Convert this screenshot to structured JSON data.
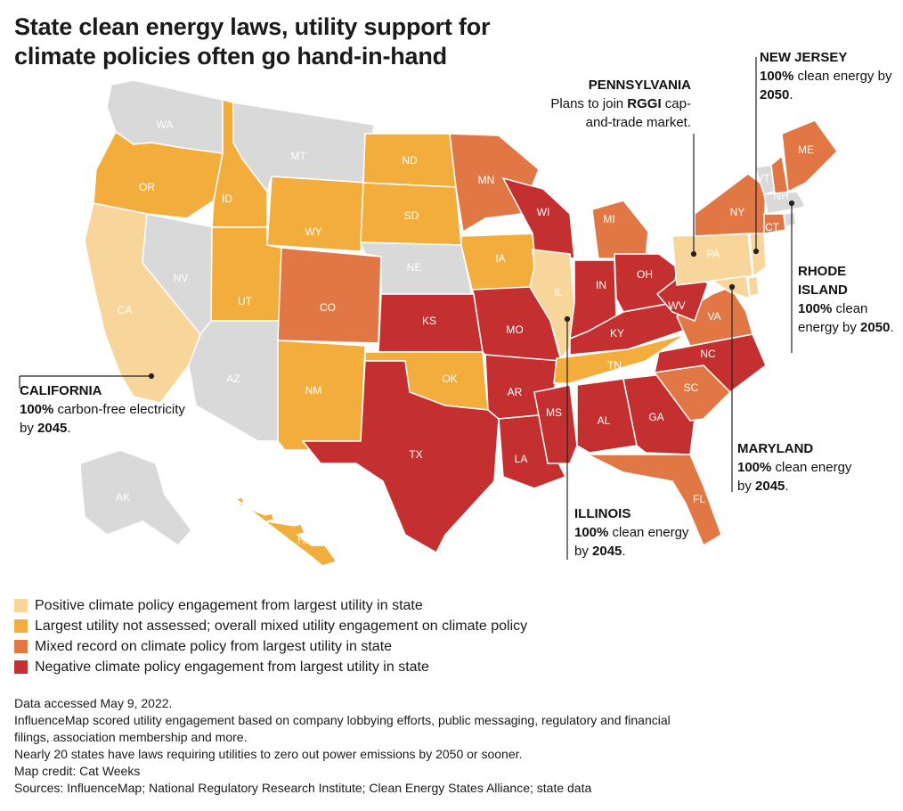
{
  "title": "State clean energy laws, utility support for climate policies often go hand-in-hand",
  "colors": {
    "positive": "#f7d59b",
    "not_assessed": "#f2ad3c",
    "mixed": "#e07744",
    "negative": "#c42f2f",
    "none": "#d9d9d9"
  },
  "states": [
    {
      "code": "WA",
      "category": "none"
    },
    {
      "code": "OR",
      "category": "not_assessed"
    },
    {
      "code": "CA",
      "category": "positive"
    },
    {
      "code": "ID",
      "category": "not_assessed"
    },
    {
      "code": "NV",
      "category": "none"
    },
    {
      "code": "MT",
      "category": "none"
    },
    {
      "code": "WY",
      "category": "not_assessed"
    },
    {
      "code": "UT",
      "category": "not_assessed"
    },
    {
      "code": "AZ",
      "category": "none"
    },
    {
      "code": "CO",
      "category": "mixed"
    },
    {
      "code": "NM",
      "category": "not_assessed"
    },
    {
      "code": "ND",
      "category": "not_assessed"
    },
    {
      "code": "SD",
      "category": "not_assessed"
    },
    {
      "code": "NE",
      "category": "none"
    },
    {
      "code": "KS",
      "category": "negative"
    },
    {
      "code": "OK",
      "category": "not_assessed"
    },
    {
      "code": "TX",
      "category": "negative"
    },
    {
      "code": "MN",
      "category": "mixed"
    },
    {
      "code": "IA",
      "category": "not_assessed"
    },
    {
      "code": "MO",
      "category": "negative"
    },
    {
      "code": "AR",
      "category": "negative"
    },
    {
      "code": "LA",
      "category": "negative"
    },
    {
      "code": "WI",
      "category": "negative"
    },
    {
      "code": "IL",
      "category": "positive"
    },
    {
      "code": "MI",
      "category": "mixed"
    },
    {
      "code": "IN",
      "category": "negative"
    },
    {
      "code": "OH",
      "category": "negative"
    },
    {
      "code": "KY",
      "category": "negative"
    },
    {
      "code": "TN",
      "category": "not_assessed"
    },
    {
      "code": "MS",
      "category": "negative"
    },
    {
      "code": "AL",
      "category": "negative"
    },
    {
      "code": "GA",
      "category": "negative"
    },
    {
      "code": "FL",
      "category": "mixed"
    },
    {
      "code": "SC",
      "category": "mixed"
    },
    {
      "code": "NC",
      "category": "negative"
    },
    {
      "code": "VA",
      "category": "mixed"
    },
    {
      "code": "WV",
      "category": "negative"
    },
    {
      "code": "PA",
      "category": "positive"
    },
    {
      "code": "NY",
      "category": "mixed"
    },
    {
      "code": "VT",
      "category": "none"
    },
    {
      "code": "NH",
      "category": "mixed"
    },
    {
      "code": "ME",
      "category": "mixed"
    },
    {
      "code": "MA",
      "category": "none"
    },
    {
      "code": "RI",
      "category": "none"
    },
    {
      "code": "CT",
      "category": "mixed"
    },
    {
      "code": "NJ",
      "category": "positive"
    },
    {
      "code": "DE",
      "category": "positive"
    },
    {
      "code": "MD",
      "category": "positive"
    },
    {
      "code": "AK",
      "category": "none"
    },
    {
      "code": "HI",
      "category": "not_assessed"
    }
  ],
  "annotations": {
    "california": {
      "name": "CALIFORNIA",
      "pre": "",
      "bold1": "100%",
      "mid": " carbon-free electricity by ",
      "bold2": "2045",
      "post": "."
    },
    "pennsylvania": {
      "name": "PENNSYLVANIA",
      "pre": "Plans to join ",
      "bold1": "RGGI",
      "mid": " cap-and-trade market.",
      "bold2": "",
      "post": ""
    },
    "new_jersey": {
      "name": "NEW JERSEY",
      "pre": "",
      "bold1": "100%",
      "mid": " clean energy by ",
      "bold2": "2050",
      "post": "."
    },
    "rhode_island": {
      "name": "RHODE ISLAND",
      "pre": "",
      "bold1": "100%",
      "mid": " clean energy by ",
      "bold2": "2050",
      "post": "."
    },
    "maryland": {
      "name": "MARYLAND",
      "pre": "",
      "bold1": "100%",
      "mid": " clean energy by ",
      "bold2": "2045",
      "post": "."
    },
    "illinois": {
      "name": "ILLINOIS",
      "pre": "",
      "bold1": "100%",
      "mid": " clean energy by ",
      "bold2": "2045",
      "post": "."
    }
  },
  "legend": [
    {
      "category": "positive",
      "label": "Positive climate policy engagement from largest utility in state"
    },
    {
      "category": "not_assessed",
      "label": "Largest utility not assessed; overall mixed utility engagement on climate policy"
    },
    {
      "category": "mixed",
      "label": "Mixed record on climate policy from largest utility in state"
    },
    {
      "category": "negative",
      "label": "Negative climate policy engagement from largest utility in state"
    }
  ],
  "notes": [
    "Data accessed May 9, 2022.",
    "InfluenceMap scored utility engagement based on company lobbying efforts, public messaging, regulatory and financial",
    "filings, association membership and more.",
    "Nearly 20 states have laws requiring utilities to zero out power emissions by 2050 or sooner.",
    "Map credit: Cat Weeks",
    "Sources: InfluenceMap; National Regulatory Research Institute; Clean Energy States Alliance; state data"
  ]
}
